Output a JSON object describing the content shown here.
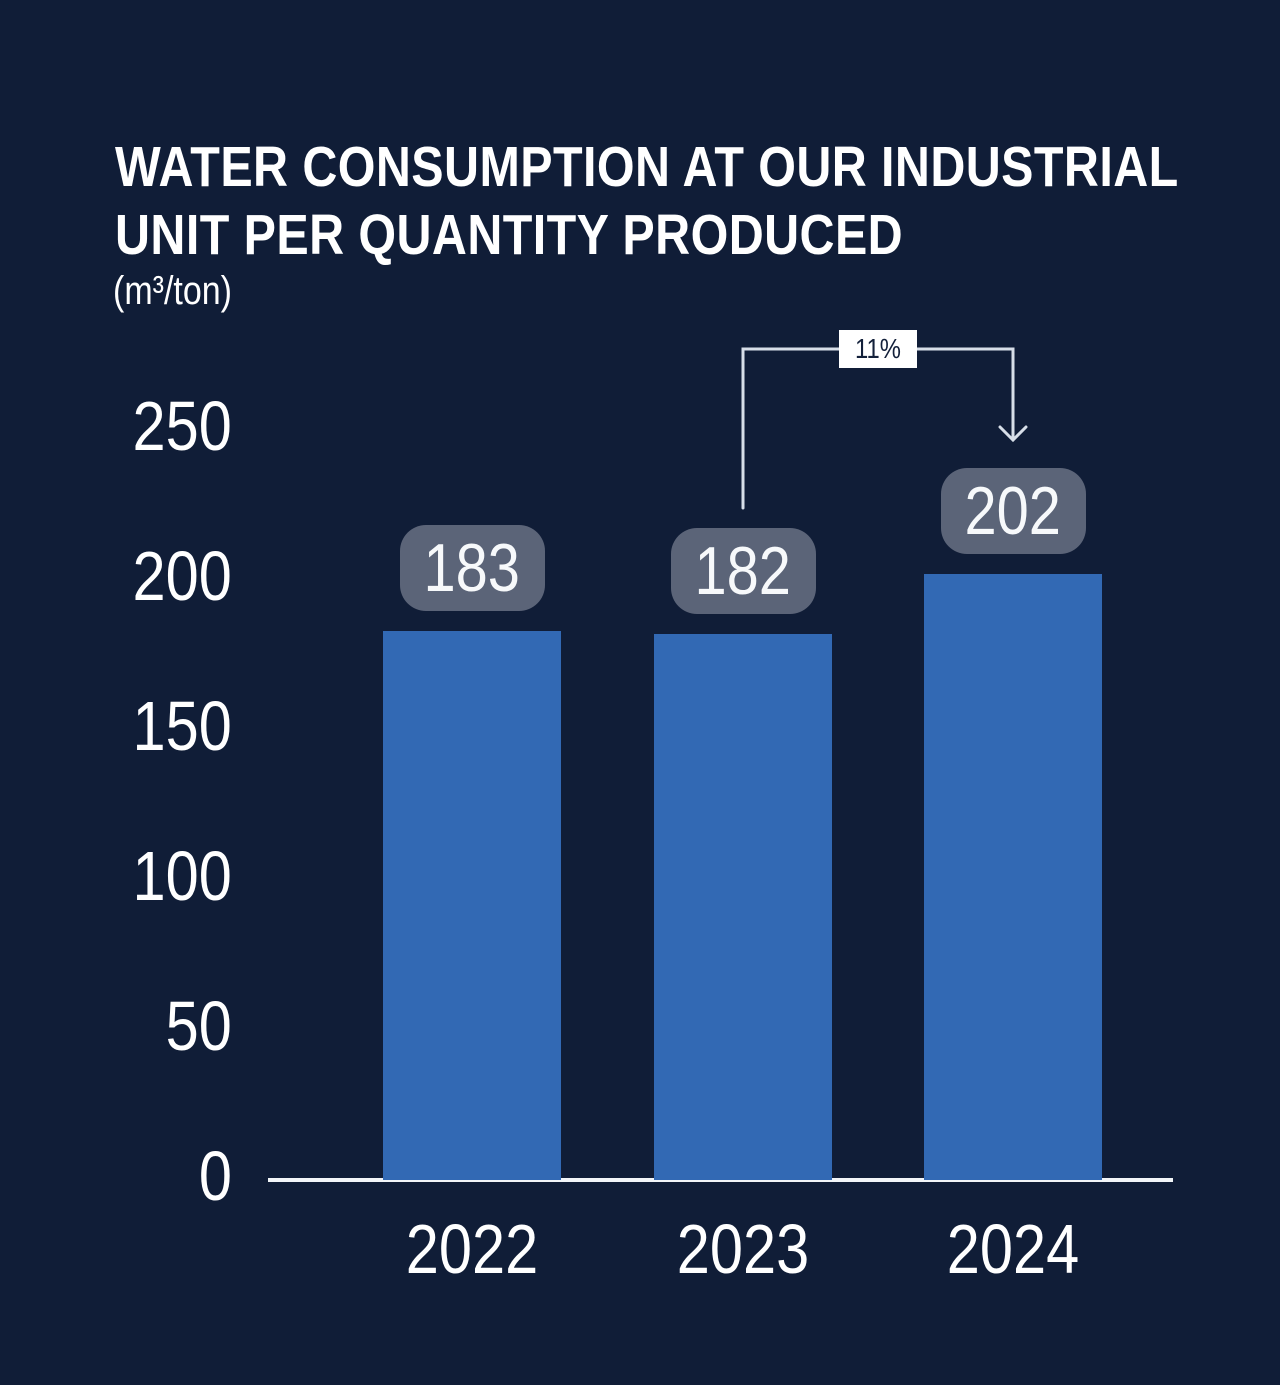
{
  "title": {
    "line1": "WATER CONSUMPTION AT OUR INDUSTRIAL",
    "line2": "UNIT PER QUANTITY PRODUCED",
    "unit": "(m³/ton)"
  },
  "chart_data": {
    "type": "bar",
    "title": "WATER CONSUMPTION AT OUR INDUSTRIAL UNIT PER QUANTITY PRODUCED",
    "ylabel": "(m³/ton)",
    "xlabel": "",
    "categories": [
      "2022",
      "2023",
      "2024"
    ],
    "values": [
      183,
      182,
      202
    ],
    "data_labels": [
      "183",
      "182",
      "202"
    ],
    "yticks": [
      0,
      50,
      100,
      150,
      200,
      250
    ],
    "ylim": [
      0,
      250
    ],
    "grid": false,
    "legend_position": "none",
    "annotation": {
      "label": "11%",
      "from": "2023",
      "to": "2024"
    },
    "colors": {
      "background": "#101d37",
      "bar": "#3269b4",
      "data_label_bg": "#5b6478",
      "data_label_text": "#f7f9fb",
      "axis_text": "#ffffff",
      "axis_line": "#f2f5f8",
      "annotation_line": "#d7dee8",
      "annotation_label_bg": "#ffffff",
      "annotation_label_text": "#13203a"
    }
  }
}
